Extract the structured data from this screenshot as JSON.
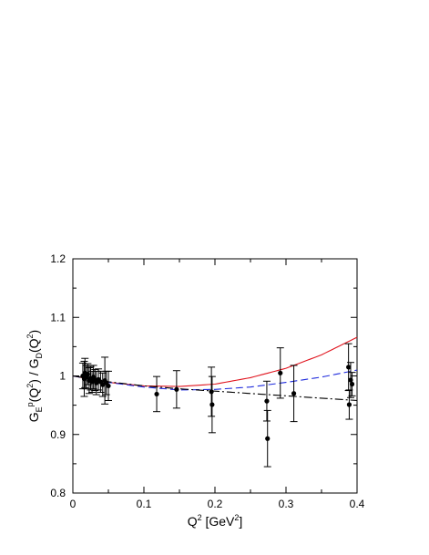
{
  "chart_data": {
    "type": "scatter",
    "xlim": [
      0,
      0.4
    ],
    "ylim": [
      0.8,
      1.2
    ],
    "x_ticks": [
      0,
      0.1,
      0.2,
      0.3,
      0.4
    ],
    "x_tick_labels": [
      "0",
      "0.1",
      "0.2",
      "0.3",
      "0.4"
    ],
    "y_ticks": [
      0.8,
      0.9,
      1.0,
      1.1,
      1.2
    ],
    "y_tick_labels": [
      "0.8",
      "0.9",
      "1",
      "1.1",
      "1.2"
    ],
    "xlabel": {
      "parts": [
        {
          "t": "Q",
          "s": "n"
        },
        {
          "t": "2",
          "s": "sup"
        },
        {
          "t": " [GeV",
          "s": "n"
        },
        {
          "t": "2",
          "s": "sup"
        },
        {
          "t": "]",
          "s": "n"
        }
      ]
    },
    "ylabel": {
      "parts": [
        {
          "t": "G",
          "s": "n"
        },
        {
          "t": "E",
          "s": "sub"
        },
        {
          "t": "p",
          "s": "sup"
        },
        {
          "t": "(Q",
          "s": "n"
        },
        {
          "t": "2",
          "s": "sup"
        },
        {
          "t": ") / G",
          "s": "n"
        },
        {
          "t": "D",
          "s": "sub"
        },
        {
          "t": "(Q",
          "s": "n"
        },
        {
          "t": "2",
          "s": "sup"
        },
        {
          "t": ")",
          "s": "n"
        }
      ]
    },
    "grid": false,
    "legend": "none",
    "data_points": [
      {
        "x": 0.014,
        "y": 1.0,
        "err": 0.022
      },
      {
        "x": 0.016,
        "y": 0.995,
        "err": 0.03
      },
      {
        "x": 0.017,
        "y": 1.005,
        "err": 0.025
      },
      {
        "x": 0.019,
        "y": 0.998,
        "err": 0.02
      },
      {
        "x": 0.021,
        "y": 1.003,
        "err": 0.018
      },
      {
        "x": 0.023,
        "y": 0.992,
        "err": 0.022
      },
      {
        "x": 0.025,
        "y": 0.996,
        "err": 0.02
      },
      {
        "x": 0.027,
        "y": 0.99,
        "err": 0.018
      },
      {
        "x": 0.029,
        "y": 0.998,
        "err": 0.02
      },
      {
        "x": 0.031,
        "y": 0.993,
        "err": 0.018
      },
      {
        "x": 0.033,
        "y": 0.988,
        "err": 0.02
      },
      {
        "x": 0.036,
        "y": 0.994,
        "err": 0.018
      },
      {
        "x": 0.039,
        "y": 0.99,
        "err": 0.018
      },
      {
        "x": 0.042,
        "y": 0.985,
        "err": 0.02
      },
      {
        "x": 0.045,
        "y": 0.992,
        "err": 0.04
      },
      {
        "x": 0.047,
        "y": 0.988,
        "err": 0.02
      },
      {
        "x": 0.05,
        "y": 0.983,
        "err": 0.025
      },
      {
        "x": 0.118,
        "y": 0.969,
        "err": 0.03
      },
      {
        "x": 0.146,
        "y": 0.977,
        "err": 0.032
      },
      {
        "x": 0.195,
        "y": 0.973,
        "err": 0.042
      },
      {
        "x": 0.196,
        "y": 0.951,
        "err": 0.048
      },
      {
        "x": 0.273,
        "y": 0.957,
        "err": 0.034
      },
      {
        "x": 0.274,
        "y": 0.893,
        "err": 0.048
      },
      {
        "x": 0.292,
        "y": 1.005,
        "err": 0.043
      },
      {
        "x": 0.311,
        "y": 0.97,
        "err": 0.048
      },
      {
        "x": 0.388,
        "y": 1.015,
        "err": 0.04
      },
      {
        "x": 0.389,
        "y": 0.951,
        "err": 0.025
      },
      {
        "x": 0.391,
        "y": 0.993,
        "err": 0.03
      },
      {
        "x": 0.393,
        "y": 0.986,
        "err": 0.02
      }
    ],
    "curves": [
      {
        "color": "#e0141e",
        "style": "solid",
        "x": [
          0.0,
          0.05,
          0.1,
          0.15,
          0.2,
          0.25,
          0.3,
          0.35,
          0.4
        ],
        "y": [
          1.0,
          0.989,
          0.983,
          0.982,
          0.986,
          0.997,
          1.013,
          1.036,
          1.066
        ]
      },
      {
        "color": "#1e2adc",
        "style": "dashed",
        "x": [
          0.0,
          0.05,
          0.1,
          0.15,
          0.2,
          0.25,
          0.3,
          0.35,
          0.4
        ],
        "y": [
          1.0,
          0.989,
          0.981,
          0.976,
          0.977,
          0.981,
          0.989,
          0.998,
          1.01
        ]
      },
      {
        "color": "#000000",
        "style": "dashdot",
        "x": [
          0.0,
          0.05,
          0.1,
          0.15,
          0.2,
          0.25,
          0.3,
          0.35,
          0.4
        ],
        "y": [
          1.0,
          0.99,
          0.983,
          0.978,
          0.974,
          0.97,
          0.966,
          0.962,
          0.958
        ]
      }
    ]
  }
}
